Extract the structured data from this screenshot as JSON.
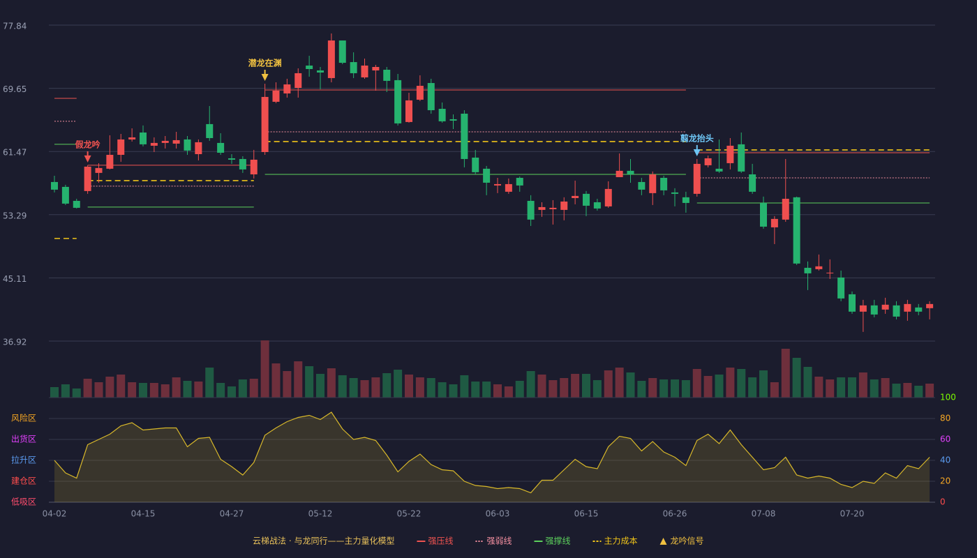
{
  "chart_data": {
    "type": "candlestick",
    "name": "云梯战法 · 与龙同行——主力量化模型",
    "categories": [
      "04-02",
      null,
      null,
      null,
      null,
      null,
      null,
      null,
      "04-15",
      null,
      null,
      null,
      null,
      null,
      null,
      null,
      "04-27",
      null,
      null,
      null,
      null,
      null,
      null,
      null,
      "05-12",
      null,
      null,
      null,
      null,
      null,
      null,
      null,
      "05-22",
      null,
      null,
      null,
      null,
      null,
      null,
      null,
      "06-03",
      null,
      null,
      null,
      null,
      null,
      null,
      null,
      "06-15",
      null,
      null,
      null,
      null,
      null,
      null,
      null,
      "06-26",
      null,
      null,
      null,
      null,
      null,
      null,
      null,
      "07-08",
      null,
      null,
      null,
      null,
      null,
      null,
      null,
      "07-20",
      null,
      null,
      null,
      null,
      null,
      null,
      null
    ],
    "ylim": [
      36.92,
      77.84
    ],
    "yticks": [
      36.92,
      45.11,
      53.29,
      61.47,
      69.65,
      77.84
    ],
    "grid": true,
    "up_color": "#ef4f4f",
    "down_color": "#26b36f",
    "open": [
      57.52,
      56.89,
      55.08,
      56.35,
      58.7,
      59.24,
      61.04,
      63.03,
      63.93,
      62.22,
      62.58,
      62.49,
      63.03,
      61.13,
      65.02,
      62.58,
      60.59,
      60.5,
      58.51,
      61.4,
      67.91,
      68.99,
      69.71,
      72.6,
      71.97,
      70.98,
      75.85,
      73.05,
      71.07,
      71.97,
      72.06,
      70.71,
      65.29,
      68.18,
      70.34,
      67.0,
      65.65,
      66.37,
      60.68,
      59.24,
      57.07,
      56.26,
      58.06,
      55.08,
      53.91,
      54.0,
      53.91,
      55.44,
      55.99,
      54.9,
      54.36,
      58.15,
      58.97,
      57.52,
      56.08,
      58.06,
      56.17,
      55.54,
      55.99,
      59.69,
      59.24,
      59.96,
      62.4,
      58.51,
      54.81,
      51.65,
      52.65,
      55.54,
      46.41,
      46.23,
      45.69,
      45.15,
      42.98,
      40.73,
      41.54,
      41.0,
      41.54,
      40.73,
      41.27,
      41.18
    ],
    "close": [
      56.53,
      54.72,
      54.18,
      59.51,
      59.33,
      61.04,
      63.03,
      63.3,
      62.4,
      62.58,
      62.85,
      62.94,
      61.59,
      62.67,
      63.21,
      61.31,
      60.41,
      59.15,
      60.41,
      68.54,
      69.35,
      70.16,
      71.61,
      72.15,
      71.7,
      75.85,
      72.96,
      71.61,
      72.6,
      72.42,
      70.62,
      65.11,
      68.09,
      69.98,
      66.82,
      65.38,
      65.47,
      60.5,
      58.79,
      57.43,
      57.25,
      57.25,
      57.07,
      52.65,
      54.27,
      54.18,
      54.99,
      55.72,
      54.45,
      54.09,
      56.62,
      58.97,
      58.51,
      56.53,
      58.51,
      56.44,
      55.99,
      54.81,
      59.87,
      60.59,
      58.88,
      62.22,
      58.88,
      56.26,
      51.74,
      52.74,
      55.35,
      46.96,
      45.69,
      46.6,
      45.78,
      42.44,
      40.73,
      41.54,
      40.36,
      41.63,
      40.09,
      41.72,
      40.73,
      41.72
    ],
    "low": [
      56.17,
      54.54,
      54.09,
      55.99,
      57.43,
      59.15,
      60.14,
      62.76,
      62.13,
      61.4,
      61.86,
      61.86,
      61.04,
      60.32,
      62.85,
      61.04,
      59.87,
      58.7,
      57.97,
      61.04,
      67.73,
      68.45,
      68.45,
      71.16,
      69.53,
      70.43,
      72.78,
      70.98,
      70.89,
      69.35,
      69.17,
      64.84,
      65.2,
      68.0,
      66.37,
      65.2,
      64.38,
      59.42,
      58.51,
      55.81,
      56.08,
      55.99,
      56.26,
      51.83,
      53.01,
      52.01,
      52.56,
      54.63,
      53.1,
      53.82,
      54.18,
      58.15,
      57.43,
      55.81,
      54.54,
      55.81,
      54.36,
      53.55,
      55.63,
      59.42,
      58.7,
      59.15,
      58.7,
      55.99,
      51.47,
      49.48,
      52.37,
      46.78,
      43.53,
      46.05,
      44.97,
      42.08,
      40.45,
      38.11,
      40.0,
      40.45,
      39.73,
      39.55,
      40.27,
      39.73
    ],
    "high": [
      58.33,
      57.16,
      55.35,
      59.69,
      59.96,
      63.57,
      63.75,
      64.47,
      64.84,
      63.3,
      63.48,
      64.02,
      63.48,
      63.03,
      67.36,
      63.84,
      61.13,
      60.86,
      61.68,
      70.25,
      70.43,
      70.89,
      72.24,
      73.87,
      72.42,
      76.76,
      75.85,
      74.32,
      73.5,
      72.69,
      72.42,
      71.52,
      69.08,
      71.34,
      70.89,
      67.82,
      66.28,
      66.82,
      61.68,
      59.6,
      58.06,
      57.97,
      58.24,
      55.81,
      54.9,
      55.17,
      55.54,
      57.7,
      56.35,
      55.35,
      57.61,
      61.22,
      60.5,
      58.06,
      58.88,
      58.33,
      56.71,
      56.26,
      60.5,
      60.95,
      63.03,
      63.21,
      63.93,
      59.87,
      55.63,
      53.1,
      60.5,
      55.63,
      47.23,
      48.13,
      47.5,
      46.05,
      43.34,
      42.26,
      42.26,
      42.53,
      42.08,
      42.26,
      41.72,
      42.08
    ],
    "volume": {
      "values": [
        15,
        19,
        13,
        27,
        22,
        30,
        33,
        22,
        21,
        21,
        19,
        29,
        24,
        23,
        43,
        21,
        16,
        26,
        27,
        82,
        49,
        38,
        52,
        45,
        34,
        42,
        32,
        28,
        25,
        29,
        35,
        40,
        33,
        29,
        28,
        22,
        19,
        32,
        23,
        23,
        19,
        16,
        24,
        38,
        33,
        25,
        28,
        34,
        34,
        25,
        39,
        43,
        36,
        24,
        28,
        26,
        26,
        25,
        41,
        31,
        33,
        43,
        41,
        29,
        39,
        22,
        70,
        57,
        44,
        30,
        26,
        29,
        29,
        36,
        26,
        28,
        20,
        21,
        17,
        20
      ],
      "up_color": "#6e2f3c",
      "down_color": "#1f5a43"
    },
    "levels": [
      {
        "name": "强压线",
        "color": "#ef5350",
        "style": "solid",
        "segments": [
          {
            "from": 0,
            "to": 2,
            "value": 68.36
          },
          {
            "from": 3,
            "to": 18,
            "value": 59.69
          },
          {
            "from": 19,
            "to": 57,
            "value": 69.44
          },
          {
            "from": 58,
            "to": 79,
            "value": 61.31
          }
        ]
      },
      {
        "name": "强弱线",
        "color": "#f48fa0",
        "style": "dotted",
        "segments": [
          {
            "from": 0,
            "to": 2,
            "value": 65.38
          },
          {
            "from": 3,
            "to": 18,
            "value": 56.98
          },
          {
            "from": 19,
            "to": 57,
            "value": 64.02
          },
          {
            "from": 58,
            "to": 79,
            "value": 58.06
          }
        ]
      },
      {
        "name": "强撑线",
        "color": "#5ccf5c",
        "style": "solid",
        "segments": [
          {
            "from": 0,
            "to": 2,
            "value": 62.4
          },
          {
            "from": 3,
            "to": 18,
            "value": 54.27
          },
          {
            "from": 19,
            "to": 57,
            "value": 58.51
          },
          {
            "from": 58,
            "to": 79,
            "value": 54.81
          }
        ]
      },
      {
        "name": "主力成本",
        "color": "#f0c419",
        "style": "dashed",
        "segments": [
          {
            "from": 0,
            "to": 2,
            "value": 50.21
          },
          {
            "from": 3,
            "to": 18,
            "value": 57.7
          },
          {
            "from": 19,
            "to": 57,
            "value": 62.76
          },
          {
            "from": 58,
            "to": 79,
            "value": 61.68
          }
        ]
      }
    ],
    "signals": {
      "name": "龙吟信号",
      "color": "#f0c040",
      "items": [
        {
          "index": 3,
          "label": "假龙吟",
          "color": "#ef5350"
        },
        {
          "index": 19,
          "label": "潜龙在渊",
          "color": "#f0c040"
        },
        {
          "index": 58,
          "label": "翦龙抬头",
          "color": "#6ec6f5"
        }
      ]
    },
    "oscillator": {
      "values": [
        40,
        28,
        23,
        55,
        60,
        65,
        73,
        76,
        69,
        70,
        71,
        71,
        53,
        61,
        62,
        41,
        34,
        26,
        38,
        64,
        71,
        77,
        81,
        83,
        79,
        86,
        70,
        60,
        62,
        59,
        45,
        29,
        39,
        46,
        36,
        31,
        30,
        20,
        16,
        15,
        13,
        14,
        13,
        9,
        21,
        21,
        31,
        41,
        34,
        32,
        53,
        63,
        61,
        49,
        58,
        48,
        43,
        35,
        59,
        65,
        56,
        69,
        55,
        43,
        31,
        33,
        43,
        26,
        23,
        25,
        23,
        17,
        14,
        20,
        18,
        28,
        23,
        35,
        32,
        43
      ],
      "color": "#d8b82a",
      "ylim": [
        0,
        100
      ],
      "yticks": [
        0,
        20,
        40,
        60,
        80,
        100
      ],
      "ytick_colors": [
        "#ff4d4d",
        "#f5a623",
        "#5b9bf0",
        "#e040fb",
        "#f5a623",
        "#7cfc00"
      ],
      "zones": [
        {
          "value": 80,
          "label": "风险区",
          "color": "#f5a623"
        },
        {
          "value": 60,
          "label": "出货区",
          "color": "#e040fb"
        },
        {
          "value": 40,
          "label": "拉升区",
          "color": "#5b9bf0"
        },
        {
          "value": 20,
          "label": "建仓区",
          "color": "#ff4d4d"
        },
        {
          "value": 0,
          "label": "低吸区",
          "color": "#ff4d6d"
        }
      ]
    }
  }
}
